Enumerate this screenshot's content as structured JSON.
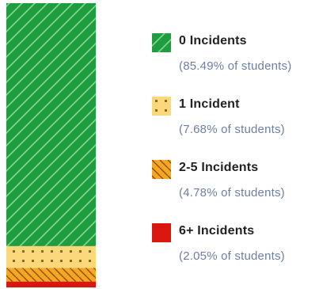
{
  "chart_data": {
    "type": "bar",
    "stacked": true,
    "orientation": "vertical",
    "series": [
      {
        "name": "0 Incidents",
        "value": 85.49,
        "pct_label": "(85.49% of students)",
        "color": "#1e9e3e",
        "pattern": "diagonal-stripes"
      },
      {
        "name": "1 Incident",
        "value": 7.68,
        "pct_label": "(7.68% of students)",
        "color": "#fbd97a",
        "pattern": "dots"
      },
      {
        "name": "2-5 Incidents",
        "value": 4.78,
        "pct_label": "(4.78% of students)",
        "color": "#f5a623",
        "pattern": "diagonal-hatch"
      },
      {
        "name": "6+ Incidents",
        "value": 2.05,
        "pct_label": "(2.05% of students)",
        "color": "#d9170f",
        "pattern": "solid"
      }
    ],
    "legend": "right"
  }
}
